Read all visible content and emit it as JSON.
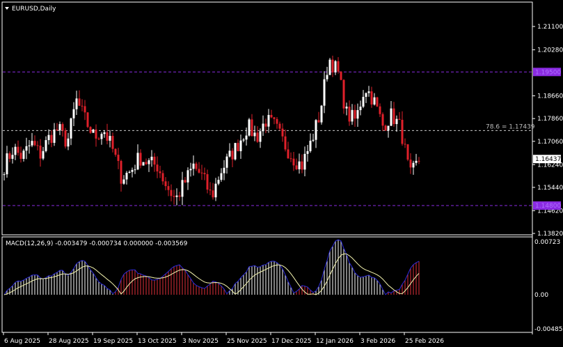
{
  "header": {
    "symbol_label": "EURUSD,Daily"
  },
  "colors": {
    "bull": "#ffffff",
    "bear": "#e0202a",
    "level": "#8a2be2",
    "macd_hist_pos": "#ffffff",
    "macd_hist_neg": "#e0303a",
    "macd_line": "#2b2bd6",
    "signal_line": "#f5f5b0",
    "background": "#000000"
  },
  "chart_data": [
    {
      "type": "candlestick",
      "price_ticks": [
        "1.21100",
        "1.20280",
        "1.18660",
        "1.17860",
        "1.17060",
        "1.16240",
        "1.15440",
        "1.14620",
        "1.13820"
      ],
      "ylim": [
        1.1382,
        1.211
      ],
      "levels": [
        {
          "price": 1.195,
          "label": "1.19500"
        },
        {
          "price": 1.148,
          "label": "1.14800"
        }
      ],
      "fib": {
        "label": "78.6 = 1.17439",
        "price": 1.17439
      },
      "current_price": "1.16437",
      "approx_closes": [
        1.162,
        1.168,
        1.165,
        1.17,
        1.166,
        1.172,
        1.175,
        1.17,
        1.185,
        1.178,
        1.172,
        1.175,
        1.168,
        1.158,
        1.16,
        1.165,
        1.163,
        1.162,
        1.155,
        1.15,
        1.156,
        1.162,
        1.158,
        1.151,
        1.16,
        1.165,
        1.17,
        1.176,
        1.172,
        1.178,
        1.176,
        1.17,
        1.165,
        1.162,
        1.17,
        1.18,
        1.2,
        1.195,
        1.18,
        1.178,
        1.19,
        1.185,
        1.176,
        1.18,
        1.175,
        1.158,
        1.164
      ],
      "x_labels": [
        "6 Aug 2025",
        "28 Aug 2025",
        "19 Sep 2025",
        "13 Oct 2025",
        "3 Nov 2025",
        "25 Nov 2025",
        "17 Dec 2025",
        "12 Jan 2026",
        "3 Feb 2026",
        "25 Feb 2026"
      ]
    },
    {
      "type": "macd",
      "label": "MACD(12,26,9) -0.003479 -0.000734 0.000000 -0.003569",
      "ticks": [
        "0.00723",
        "0.00",
        "-0.004852"
      ],
      "ylim": [
        -0.004852,
        0.00723
      ]
    }
  ]
}
